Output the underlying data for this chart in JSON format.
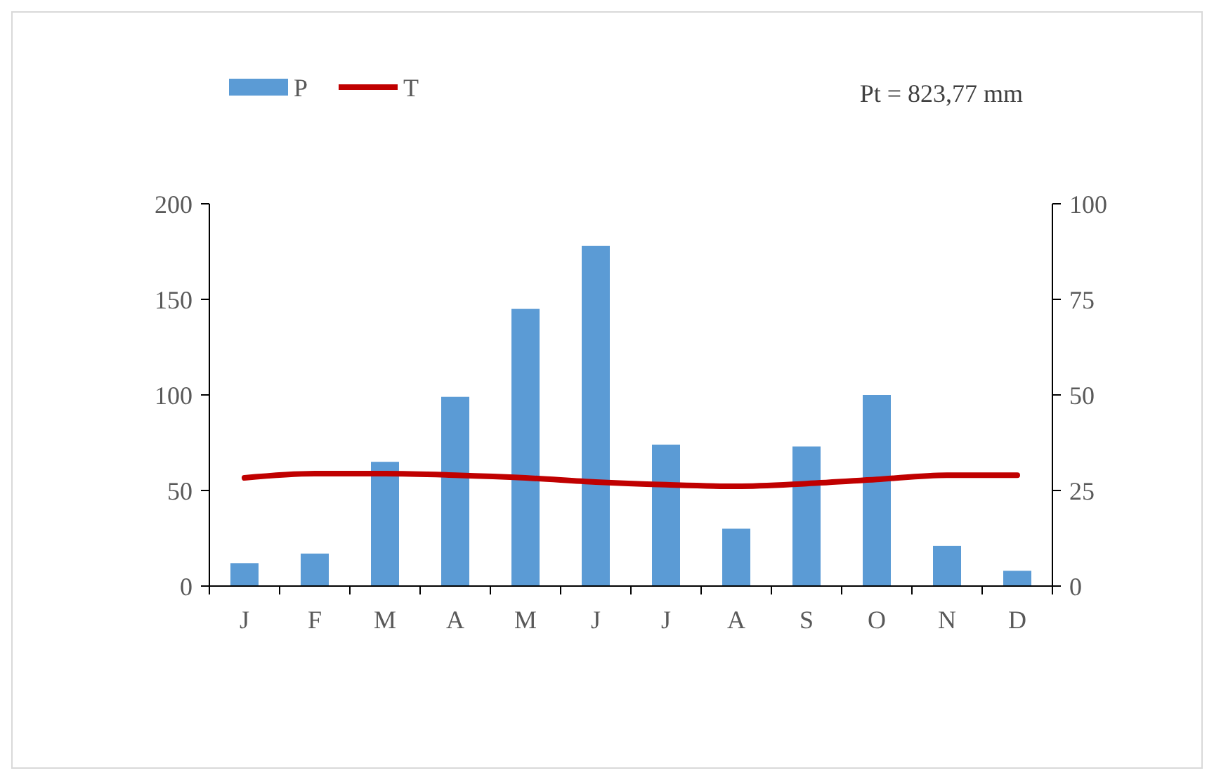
{
  "chart_data": {
    "type": "bar",
    "categories": [
      "J",
      "F",
      "M",
      "A",
      "M",
      "J",
      "J",
      "A",
      "S",
      "O",
      "N",
      "D"
    ],
    "series": [
      {
        "name": "P",
        "color": "#5b9bd5",
        "values": [
          12,
          17,
          65,
          99,
          145,
          178,
          74,
          30,
          73,
          100,
          21,
          8
        ]
      },
      {
        "name": "T",
        "type": "line",
        "axis": "y2",
        "color": "#c00000",
        "values": [
          28.3,
          29.4,
          29.4,
          29,
          28.3,
          27.2,
          26.5,
          26.1,
          26.8,
          27.9,
          29,
          29
        ]
      }
    ],
    "ylim": [
      0,
      200
    ],
    "yticks": [
      0,
      50,
      100,
      150,
      200
    ],
    "y2lim": [
      0,
      100
    ],
    "y2ticks": [
      0,
      25,
      50,
      75,
      100
    ],
    "legend": "top left",
    "grid": false,
    "marker": "none",
    "line_style": "solid",
    "annotations": [
      "Pt = 823,77 mm"
    ]
  }
}
